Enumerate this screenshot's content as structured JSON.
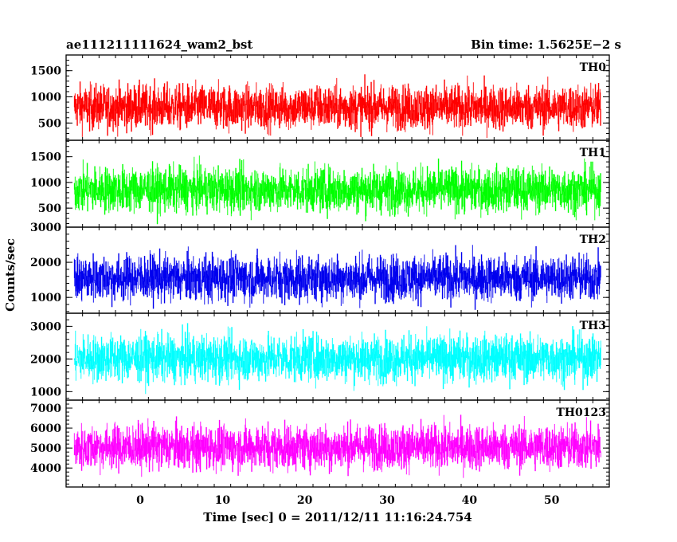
{
  "chart_data": {
    "type": "line",
    "title_left": "ae111211111624_wam2_bst",
    "title_right": "Bin time: 1.5625E−2 s",
    "xlabel": "Time [sec] 0 = 2011/12/11 11:16:24.754",
    "ylabel": "Counts/sec",
    "xlim": [
      -9,
      57
    ],
    "x_ticks": [
      0,
      10,
      20,
      30,
      40,
      50
    ],
    "data_x_range": [
      -8,
      56
    ],
    "bin_time": 0.015625,
    "panels": [
      {
        "name": "TH0",
        "color": "#ff0000",
        "ylim": [
          170,
          1800
        ],
        "y_ticks": [
          500,
          1000,
          1500
        ],
        "mean": 800,
        "spread": 310
      },
      {
        "name": "TH1",
        "color": "#00ff00",
        "ylim": [
          130,
          1820
        ],
        "y_ticks": [
          500,
          1000,
          1500
        ],
        "mean": 860,
        "spread": 320
      },
      {
        "name": "TH2",
        "color": "#0000ee",
        "ylim": [
          550,
          3000
        ],
        "y_ticks": [
          1000,
          2000,
          3000
        ],
        "mean": 1550,
        "spread": 480
      },
      {
        "name": "TH3",
        "color": "#00ffff",
        "ylim": [
          740,
          3400
        ],
        "y_ticks": [
          1000,
          2000,
          3000
        ],
        "mean": 2020,
        "spread": 520
      },
      {
        "name": "TH0123",
        "color": "#ff00ff",
        "ylim": [
          3050,
          7400
        ],
        "y_ticks": [
          4000,
          5000,
          6000,
          7000
        ],
        "mean": 5050,
        "spread": 820
      }
    ]
  }
}
